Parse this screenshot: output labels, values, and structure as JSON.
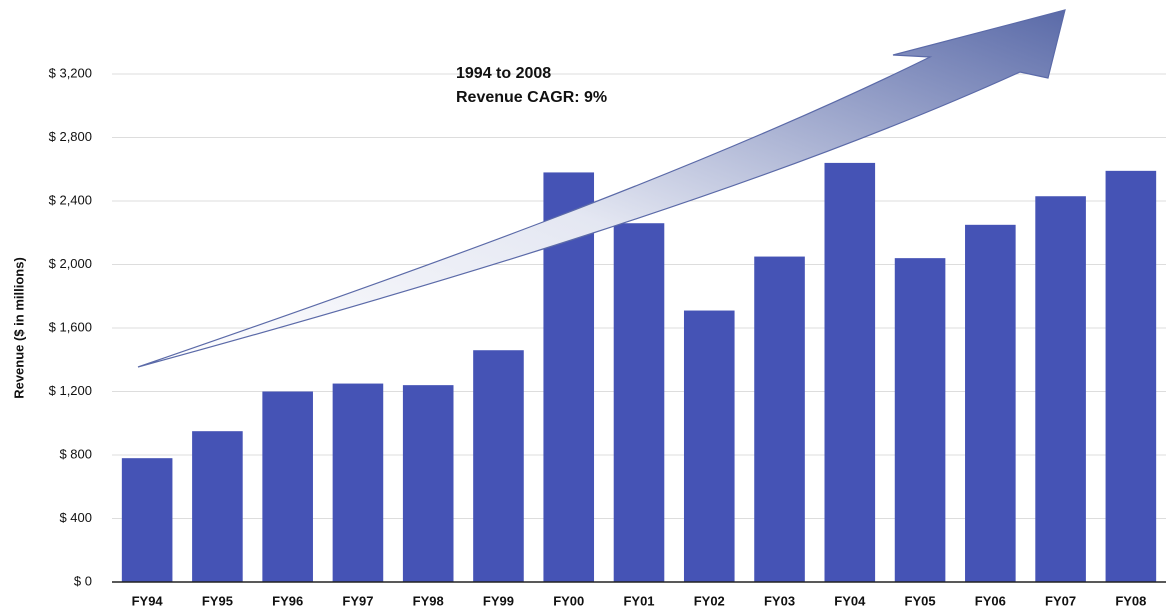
{
  "chart_data": {
    "type": "bar",
    "y_axis_label": "Revenue ($ in millions)",
    "annotation": [
      "1994 to 2008",
      "Revenue CAGR: 9%"
    ],
    "categories": [
      "FY94",
      "FY95",
      "FY96",
      "FY97",
      "FY98",
      "FY99",
      "FY00",
      "FY01",
      "FY02",
      "FY03",
      "FY04",
      "FY05",
      "FY06",
      "FY07",
      "FY08"
    ],
    "values": [
      780,
      950,
      1200,
      1250,
      1240,
      1460,
      2580,
      2260,
      1710,
      2050,
      2640,
      2040,
      2250,
      2430,
      2590
    ],
    "color": "#4553b5",
    "ylim": [
      0,
      3200
    ],
    "yticks": [
      {
        "value": 0,
        "label": "$ 0"
      },
      {
        "value": 400,
        "label": "$ 400"
      },
      {
        "value": 800,
        "label": "$ 800"
      },
      {
        "value": 1200,
        "label": "$ 1,200"
      },
      {
        "value": 1600,
        "label": "$ 1,600"
      },
      {
        "value": 2000,
        "label": "$ 2,000"
      },
      {
        "value": 2400,
        "label": "$ 2,400"
      },
      {
        "value": 2800,
        "label": "$ 2,800"
      },
      {
        "value": 3200,
        "label": "$ 3,200"
      }
    ],
    "grid": true
  }
}
